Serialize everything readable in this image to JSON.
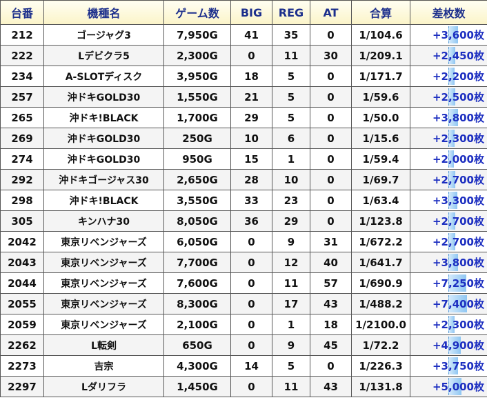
{
  "headers": [
    "台番",
    "機種名",
    "ゲーム数",
    "BIG",
    "REG",
    "AT",
    "合算",
    "差枚数"
  ],
  "rows": [
    {
      "no": "212",
      "name": "ゴージャグ3",
      "games": "7,950G",
      "big": "41",
      "reg": "35",
      "at": "0",
      "total": "1/104.6",
      "diff": "+3,600枚"
    },
    {
      "no": "222",
      "name": "Lデビクラ5",
      "games": "2,300G",
      "big": "0",
      "reg": "11",
      "at": "30",
      "total": "1/209.1",
      "diff": "+2,450枚"
    },
    {
      "no": "234",
      "name": "A-SLOTディスク",
      "games": "3,950G",
      "big": "18",
      "reg": "5",
      "at": "0",
      "total": "1/171.7",
      "diff": "+2,200枚"
    },
    {
      "no": "257",
      "name": "沖ドキGOLD30",
      "games": "1,550G",
      "big": "21",
      "reg": "5",
      "at": "0",
      "total": "1/59.6",
      "diff": "+2,500枚"
    },
    {
      "no": "265",
      "name": "沖ドキ!BLACK",
      "games": "1,700G",
      "big": "29",
      "reg": "5",
      "at": "0",
      "total": "1/50.0",
      "diff": "+3,800枚"
    },
    {
      "no": "269",
      "name": "沖ドキGOLD30",
      "games": "250G",
      "big": "10",
      "reg": "6",
      "at": "0",
      "total": "1/15.6",
      "diff": "+2,300枚"
    },
    {
      "no": "274",
      "name": "沖ドキGOLD30",
      "games": "950G",
      "big": "15",
      "reg": "1",
      "at": "0",
      "total": "1/59.4",
      "diff": "+2,000枚"
    },
    {
      "no": "292",
      "name": "沖ドキゴージャス30",
      "games": "2,650G",
      "big": "28",
      "reg": "10",
      "at": "0",
      "total": "1/69.7",
      "diff": "+2,700枚"
    },
    {
      "no": "298",
      "name": "沖ドキ!BLACK",
      "games": "3,550G",
      "big": "33",
      "reg": "23",
      "at": "0",
      "total": "1/63.4",
      "diff": "+3,300枚"
    },
    {
      "no": "305",
      "name": "キンハナ30",
      "games": "8,050G",
      "big": "36",
      "reg": "29",
      "at": "0",
      "total": "1/123.8",
      "diff": "+2,700枚"
    },
    {
      "no": "2042",
      "name": "東京リベンジャーズ",
      "games": "6,050G",
      "big": "0",
      "reg": "9",
      "at": "31",
      "total": "1/672.2",
      "diff": "+2,700枚"
    },
    {
      "no": "2043",
      "name": "東京リベンジャーズ",
      "games": "7,700G",
      "big": "0",
      "reg": "12",
      "at": "40",
      "total": "1/641.7",
      "diff": "+3,800枚"
    },
    {
      "no": "2044",
      "name": "東京リベンジャーズ",
      "games": "7,600G",
      "big": "0",
      "reg": "11",
      "at": "57",
      "total": "1/690.9",
      "diff": "+7,250枚"
    },
    {
      "no": "2055",
      "name": "東京リベンジャーズ",
      "games": "8,300G",
      "big": "0",
      "reg": "17",
      "at": "43",
      "total": "1/488.2",
      "diff": "+7,400枚"
    },
    {
      "no": "2059",
      "name": "東京リベンジャーズ",
      "games": "2,100G",
      "big": "0",
      "reg": "1",
      "at": "18",
      "total": "1/2100.0",
      "diff": "+2,300枚"
    },
    {
      "no": "2262",
      "name": "L転剣",
      "games": "650G",
      "big": "0",
      "reg": "9",
      "at": "45",
      "total": "1/72.2",
      "diff": "+4,900枚"
    },
    {
      "no": "2273",
      "name": "吉宗",
      "games": "4,300G",
      "big": "14",
      "reg": "5",
      "at": "0",
      "total": "1/226.3",
      "diff": "+3,750枚"
    },
    {
      "no": "2297",
      "name": "Lダリフラ",
      "games": "1,450G",
      "big": "0",
      "reg": "11",
      "at": "43",
      "total": "1/131.8",
      "diff": "+5,000枚"
    }
  ],
  "diff_values": [
    3600,
    2450,
    2200,
    2500,
    3800,
    2300,
    2000,
    2700,
    3300,
    2700,
    2700,
    3800,
    7250,
    7400,
    2300,
    4900,
    3750,
    5000
  ],
  "colors": {
    "header_text": "#1c2f8c",
    "diff_text": "#1c2ec0",
    "bar": "#8fc6f2"
  }
}
